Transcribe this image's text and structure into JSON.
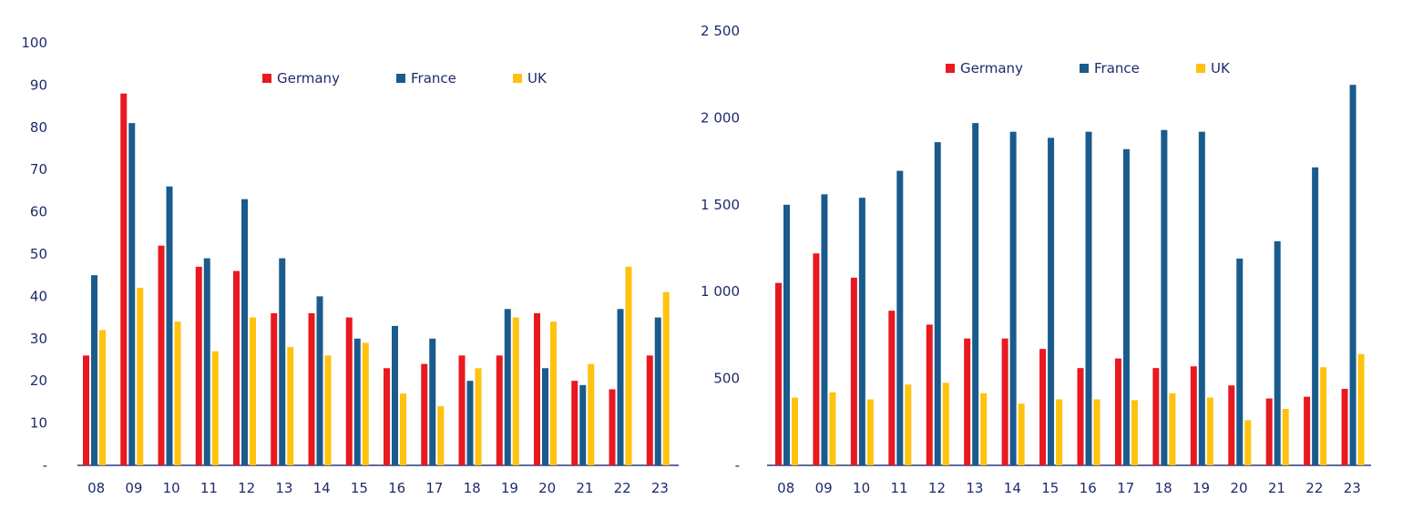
{
  "colors": {
    "germany": "#e8191f",
    "france": "#1a5b8e",
    "uk": "#ffc20e",
    "axis": "#2b3a7a",
    "text": "#1f2a6b"
  },
  "chart_data": [
    {
      "type": "bar",
      "title": "",
      "xlabel": "",
      "ylabel": "",
      "categories": [
        "08",
        "09",
        "10",
        "11",
        "12",
        "13",
        "14",
        "15",
        "16",
        "17",
        "18",
        "19",
        "20",
        "21",
        "22",
        "23"
      ],
      "ylim": [
        0,
        100
      ],
      "y_ticks": [
        "-",
        "10",
        "20",
        "30",
        "40",
        "50",
        "60",
        "70",
        "80",
        "90",
        "100"
      ],
      "legend_position": "top",
      "grid": false,
      "series": [
        {
          "name": "Germany",
          "color_key": "germany",
          "values": [
            26,
            88,
            52,
            47,
            46,
            36,
            36,
            35,
            23,
            24,
            26,
            26,
            36,
            20,
            18,
            26
          ]
        },
        {
          "name": "France",
          "color_key": "france",
          "values": [
            45,
            81,
            66,
            49,
            63,
            49,
            40,
            30,
            33,
            30,
            20,
            37,
            23,
            19,
            37,
            35
          ]
        },
        {
          "name": "UK",
          "color_key": "uk",
          "values": [
            32,
            42,
            34,
            27,
            35,
            28,
            26,
            29,
            17,
            14,
            23,
            35,
            34,
            24,
            47,
            41
          ]
        }
      ]
    },
    {
      "type": "bar",
      "title": "",
      "xlabel": "",
      "ylabel": "",
      "categories": [
        "08",
        "09",
        "10",
        "11",
        "12",
        "13",
        "14",
        "15",
        "16",
        "17",
        "18",
        "19",
        "20",
        "21",
        "22",
        "23"
      ],
      "ylim": [
        0,
        2500
      ],
      "y_ticks": [
        "-",
        "500",
        "1 000",
        "1 500",
        "2 000",
        "2 500"
      ],
      "legend_position": "top",
      "grid": false,
      "series": [
        {
          "name": "Germany",
          "color_key": "germany",
          "values": [
            1050,
            1220,
            1080,
            890,
            810,
            730,
            730,
            670,
            560,
            615,
            560,
            570,
            460,
            385,
            395,
            440
          ]
        },
        {
          "name": "France",
          "color_key": "france",
          "values": [
            1500,
            1560,
            1540,
            1695,
            1860,
            1970,
            1920,
            1885,
            1920,
            1820,
            1930,
            1920,
            1190,
            1290,
            1715,
            2190
          ]
        },
        {
          "name": "UK",
          "color_key": "uk",
          "values": [
            390,
            420,
            380,
            465,
            475,
            415,
            355,
            380,
            380,
            375,
            415,
            390,
            260,
            325,
            565,
            640
          ]
        }
      ]
    }
  ]
}
